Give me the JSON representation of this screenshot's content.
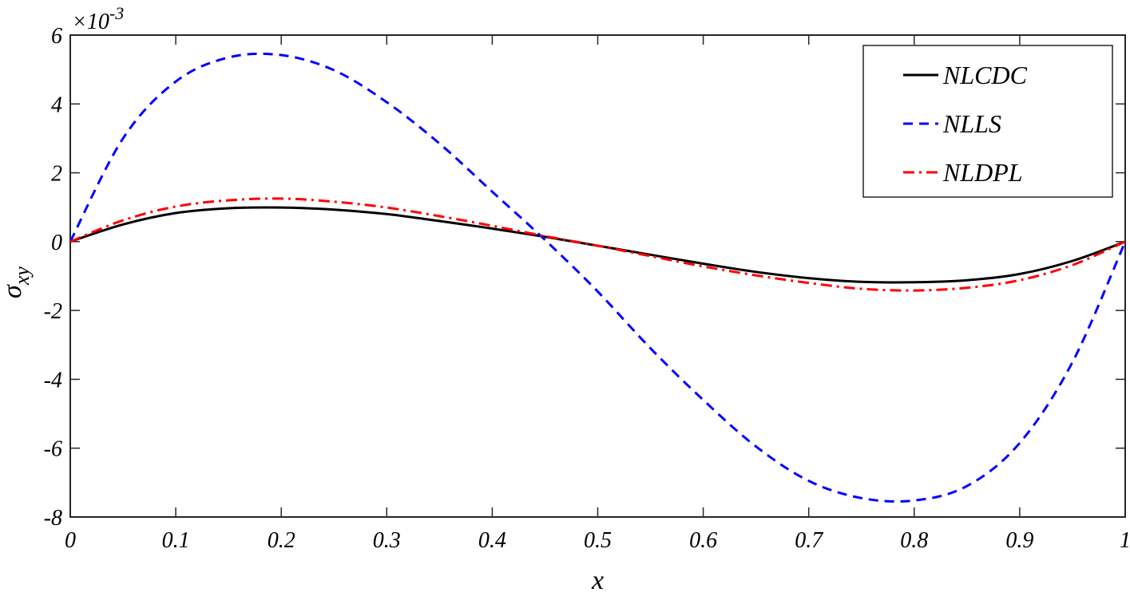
{
  "chart_data": {
    "type": "line",
    "xlabel": "x",
    "ylabel": "σ",
    "ylabel_subscript": "xy",
    "y_exponent_label": "×10",
    "y_exponent_power": "-3",
    "xlim": [
      0,
      1
    ],
    "ylim": [
      -8,
      6
    ],
    "x_ticks": [
      0,
      0.1,
      0.2,
      0.3,
      0.4,
      0.5,
      0.6,
      0.7,
      0.8,
      0.9,
      1
    ],
    "x_tick_labels": [
      "0",
      "0.1",
      "0.2",
      "0.3",
      "0.4",
      "0.5",
      "0.6",
      "0.7",
      "0.8",
      "0.9",
      "1"
    ],
    "y_ticks": [
      -8,
      -6,
      -4,
      -2,
      0,
      2,
      4,
      6
    ],
    "y_tick_labels": [
      "-8",
      "-6",
      "-4",
      "-2",
      "0",
      "2",
      "4",
      "6"
    ],
    "grid": false,
    "legend_position": "top-right",
    "x": [
      0,
      0.05,
      0.1,
      0.15,
      0.2,
      0.25,
      0.3,
      0.35,
      0.4,
      0.45,
      0.5,
      0.55,
      0.6,
      0.65,
      0.7,
      0.75,
      0.8,
      0.85,
      0.9,
      0.95,
      1
    ],
    "series": [
      {
        "name": "NLCDC",
        "color": "#000000",
        "style": "solid",
        "values": [
          0,
          0.5,
          0.83,
          0.97,
          0.99,
          0.93,
          0.8,
          0.6,
          0.38,
          0.14,
          -0.12,
          -0.38,
          -0.64,
          -0.88,
          -1.06,
          -1.17,
          -1.18,
          -1.12,
          -0.94,
          -0.56,
          0
        ]
      },
      {
        "name": "NLLS",
        "color": "#0000ff",
        "style": "dashed",
        "values": [
          0,
          3.0,
          4.65,
          5.35,
          5.42,
          4.98,
          4.05,
          2.85,
          1.45,
          0.05,
          -1.45,
          -3.1,
          -4.6,
          -5.95,
          -6.95,
          -7.45,
          -7.52,
          -7.1,
          -5.85,
          -3.5,
          0
        ]
      },
      {
        "name": "NLDPL",
        "color": "#ff0000",
        "style": "dashdot",
        "values": [
          0,
          0.62,
          1.02,
          1.2,
          1.25,
          1.16,
          0.99,
          0.74,
          0.46,
          0.16,
          -0.12,
          -0.42,
          -0.72,
          -0.98,
          -1.2,
          -1.37,
          -1.42,
          -1.34,
          -1.12,
          -0.68,
          0
        ]
      }
    ]
  }
}
